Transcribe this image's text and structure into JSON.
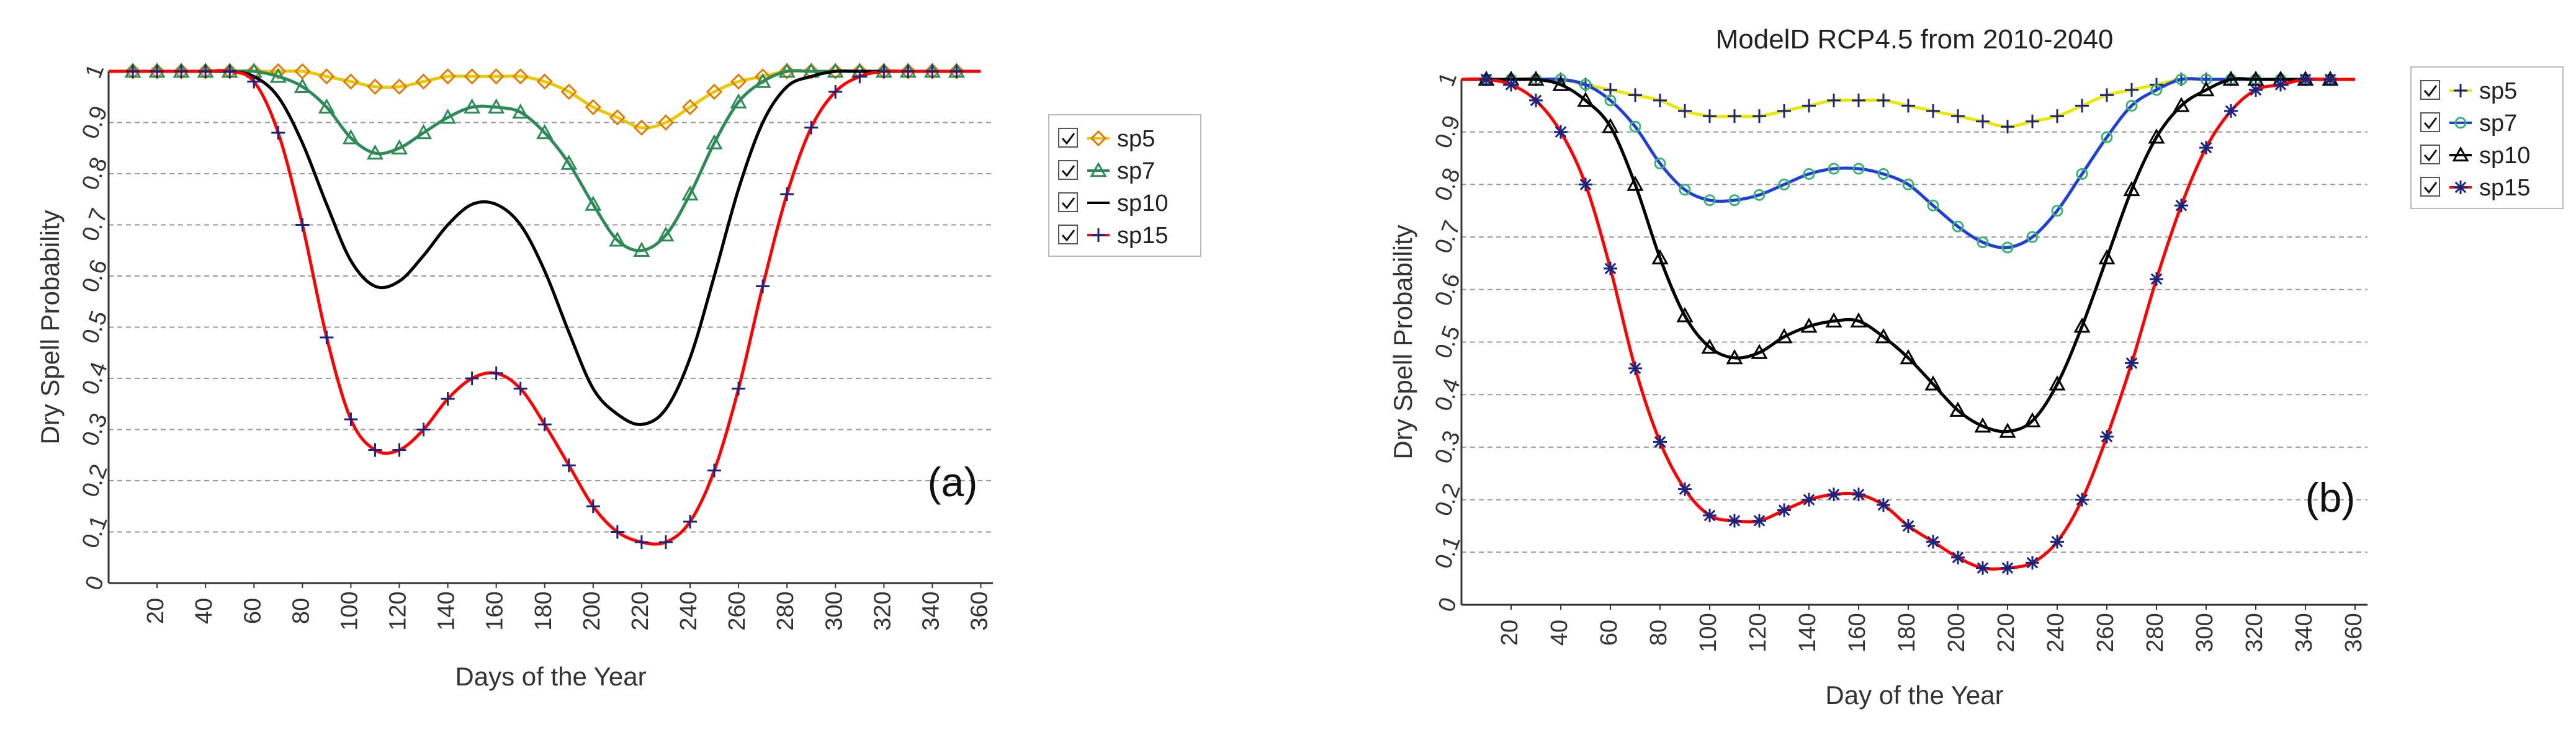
{
  "chart_data": [
    {
      "type": "line",
      "title": "",
      "panel_label": "(a)",
      "xlabel": "Days of the Year",
      "ylabel": "Dry Spell Probability",
      "xlim": [
        0,
        365
      ],
      "ylim": [
        0,
        1
      ],
      "x_ticks": [
        "20",
        "40",
        "60",
        "80",
        "100",
        "120",
        "140",
        "160",
        "180",
        "200",
        "220",
        "240",
        "260",
        "280",
        "300",
        "320",
        "340",
        "360"
      ],
      "y_ticks": [
        "0",
        "0.1",
        "0.2",
        "0.3",
        "0.4",
        "0.5",
        "0.6",
        "0.7",
        "0.8",
        "0.9",
        "1"
      ],
      "grid": true,
      "legend_position": "right",
      "series": [
        {
          "name": "sp5",
          "color": "#e8c800",
          "marker": "diamond",
          "x": [
            0,
            10,
            20,
            30,
            40,
            50,
            60,
            70,
            80,
            90,
            100,
            110,
            120,
            130,
            140,
            150,
            160,
            170,
            180,
            190,
            200,
            210,
            220,
            230,
            240,
            250,
            260,
            270,
            280,
            290,
            300,
            310,
            320,
            330,
            340,
            350,
            360
          ],
          "y": [
            1,
            1,
            1,
            1,
            1,
            1,
            1,
            1,
            1,
            0.99,
            0.98,
            0.97,
            0.97,
            0.98,
            0.99,
            0.99,
            0.99,
            0.99,
            0.98,
            0.96,
            0.93,
            0.91,
            0.89,
            0.9,
            0.93,
            0.96,
            0.98,
            0.99,
            1,
            1,
            1,
            1,
            1,
            1,
            1,
            1,
            1
          ]
        },
        {
          "name": "sp7",
          "color": "#2e8b57",
          "marker": "triangle",
          "x": [
            0,
            10,
            20,
            30,
            40,
            50,
            60,
            70,
            80,
            90,
            100,
            110,
            120,
            130,
            140,
            150,
            160,
            170,
            180,
            190,
            200,
            210,
            220,
            230,
            240,
            250,
            260,
            270,
            280,
            290,
            300,
            310,
            320,
            330,
            340,
            350,
            360
          ],
          "y": [
            1,
            1,
            1,
            1,
            1,
            1,
            1,
            0.99,
            0.97,
            0.93,
            0.87,
            0.84,
            0.85,
            0.88,
            0.91,
            0.93,
            0.93,
            0.92,
            0.88,
            0.82,
            0.74,
            0.67,
            0.65,
            0.68,
            0.76,
            0.86,
            0.94,
            0.98,
            1,
            1,
            1,
            1,
            1,
            1,
            1,
            1,
            1
          ]
        },
        {
          "name": "sp10",
          "color": "#000000",
          "marker": "none",
          "x": [
            0,
            10,
            20,
            30,
            40,
            50,
            60,
            70,
            80,
            90,
            100,
            110,
            120,
            130,
            140,
            150,
            160,
            170,
            180,
            190,
            200,
            210,
            220,
            230,
            240,
            250,
            260,
            270,
            280,
            290,
            300,
            310,
            320,
            330,
            340,
            350,
            360
          ],
          "y": [
            1,
            1,
            1,
            1,
            1,
            1,
            0.99,
            0.95,
            0.86,
            0.74,
            0.63,
            0.58,
            0.59,
            0.64,
            0.7,
            0.74,
            0.74,
            0.7,
            0.61,
            0.49,
            0.38,
            0.33,
            0.31,
            0.34,
            0.44,
            0.6,
            0.77,
            0.9,
            0.97,
            0.99,
            1,
            1,
            1,
            1,
            1,
            1,
            1
          ]
        },
        {
          "name": "sp15",
          "color": "#ff0000",
          "marker": "plus",
          "marker_color": "#1a237e",
          "x": [
            0,
            10,
            20,
            30,
            40,
            50,
            60,
            70,
            80,
            90,
            100,
            110,
            120,
            130,
            140,
            150,
            160,
            170,
            180,
            190,
            200,
            210,
            220,
            230,
            240,
            250,
            260,
            270,
            280,
            290,
            300,
            310,
            320,
            330,
            340,
            350,
            360
          ],
          "y": [
            1,
            1,
            1,
            1,
            1,
            1,
            0.98,
            0.88,
            0.7,
            0.48,
            0.32,
            0.26,
            0.26,
            0.3,
            0.36,
            0.4,
            0.41,
            0.38,
            0.31,
            0.23,
            0.15,
            0.1,
            0.08,
            0.08,
            0.12,
            0.22,
            0.38,
            0.58,
            0.76,
            0.89,
            0.96,
            0.99,
            1,
            1,
            1,
            1,
            1
          ]
        }
      ]
    },
    {
      "type": "line",
      "title": "ModelD RCP4.5 from 2010-2040",
      "panel_label": "(b)",
      "xlabel": "Day of the Year",
      "ylabel": "Dry Spell Probability",
      "xlim": [
        0,
        365
      ],
      "ylim": [
        0,
        1
      ],
      "x_ticks": [
        "20",
        "40",
        "60",
        "80",
        "100",
        "120",
        "140",
        "160",
        "180",
        "200",
        "220",
        "240",
        "260",
        "280",
        "300",
        "320",
        "340",
        "360"
      ],
      "y_ticks": [
        "0",
        "0.1",
        "0.2",
        "0.3",
        "0.4",
        "0.5",
        "0.6",
        "0.7",
        "0.8",
        "0.9",
        "1"
      ],
      "grid": true,
      "legend_position": "right",
      "series": [
        {
          "name": "sp5",
          "color": "#e8e800",
          "marker": "plus",
          "marker_color": "#1a237e",
          "x": [
            0,
            10,
            20,
            30,
            40,
            50,
            60,
            70,
            80,
            90,
            100,
            110,
            120,
            130,
            140,
            150,
            160,
            170,
            180,
            190,
            200,
            210,
            220,
            230,
            240,
            250,
            260,
            270,
            280,
            290,
            300,
            310,
            320,
            330,
            340,
            350,
            360
          ],
          "y": [
            1,
            1,
            1,
            1,
            1,
            0.99,
            0.98,
            0.97,
            0.96,
            0.94,
            0.93,
            0.93,
            0.93,
            0.94,
            0.95,
            0.96,
            0.96,
            0.96,
            0.95,
            0.94,
            0.93,
            0.92,
            0.91,
            0.92,
            0.93,
            0.95,
            0.97,
            0.98,
            0.99,
            1,
            1,
            1,
            1,
            1,
            1,
            1,
            1
          ]
        },
        {
          "name": "sp7",
          "color": "#1f3fd6",
          "marker": "circle",
          "marker_color": "#3cb371",
          "x": [
            0,
            10,
            20,
            30,
            40,
            50,
            60,
            70,
            80,
            90,
            100,
            110,
            120,
            130,
            140,
            150,
            160,
            170,
            180,
            190,
            200,
            210,
            220,
            230,
            240,
            250,
            260,
            270,
            280,
            290,
            300,
            310,
            320,
            330,
            340,
            350,
            360
          ],
          "y": [
            1,
            1,
            1,
            1,
            1,
            0.99,
            0.96,
            0.91,
            0.84,
            0.79,
            0.77,
            0.77,
            0.78,
            0.8,
            0.82,
            0.83,
            0.83,
            0.82,
            0.8,
            0.76,
            0.72,
            0.69,
            0.68,
            0.7,
            0.75,
            0.82,
            0.89,
            0.95,
            0.98,
            1,
            1,
            1,
            1,
            1,
            1,
            1,
            1
          ]
        },
        {
          "name": "sp10",
          "color": "#000000",
          "marker": "triangle",
          "x": [
            0,
            10,
            20,
            30,
            40,
            50,
            60,
            70,
            80,
            90,
            100,
            110,
            120,
            130,
            140,
            150,
            160,
            170,
            180,
            190,
            200,
            210,
            220,
            230,
            240,
            250,
            260,
            270,
            280,
            290,
            300,
            310,
            320,
            330,
            340,
            350,
            360
          ],
          "y": [
            1,
            1,
            1,
            1,
            0.99,
            0.96,
            0.91,
            0.8,
            0.66,
            0.55,
            0.49,
            0.47,
            0.48,
            0.51,
            0.53,
            0.54,
            0.54,
            0.51,
            0.47,
            0.42,
            0.37,
            0.34,
            0.33,
            0.35,
            0.42,
            0.53,
            0.66,
            0.79,
            0.89,
            0.95,
            0.98,
            1,
            1,
            1,
            1,
            1,
            1
          ]
        },
        {
          "name": "sp15",
          "color": "#ff0000",
          "marker": "star",
          "marker_color": "#1a237e",
          "x": [
            0,
            10,
            20,
            30,
            40,
            50,
            60,
            70,
            80,
            90,
            100,
            110,
            120,
            130,
            140,
            150,
            160,
            170,
            180,
            190,
            200,
            210,
            220,
            230,
            240,
            250,
            260,
            270,
            280,
            290,
            300,
            310,
            320,
            330,
            340,
            350,
            360
          ],
          "y": [
            1,
            1,
            0.99,
            0.96,
            0.9,
            0.8,
            0.64,
            0.45,
            0.31,
            0.22,
            0.17,
            0.16,
            0.16,
            0.18,
            0.2,
            0.21,
            0.21,
            0.19,
            0.15,
            0.12,
            0.09,
            0.07,
            0.07,
            0.08,
            0.12,
            0.2,
            0.32,
            0.46,
            0.62,
            0.76,
            0.87,
            0.94,
            0.98,
            0.99,
            1,
            1,
            1
          ]
        }
      ]
    }
  ]
}
